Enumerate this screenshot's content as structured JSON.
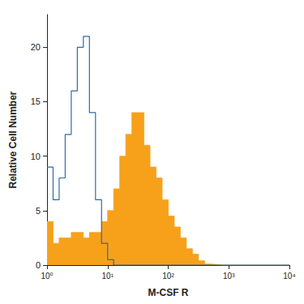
{
  "chart_data": {
    "type": "histogram",
    "xlabel": "M-CSF R",
    "ylabel": "Relative Cell Number",
    "log": "x",
    "grid": false,
    "xlim": [
      1,
      10000
    ],
    "xticks": [
      {
        "value": 1,
        "label": "10⁰"
      },
      {
        "value": 10,
        "label": "10¹"
      },
      {
        "value": 100,
        "label": "10²"
      },
      {
        "value": 1000,
        "label": "10³"
      },
      {
        "value": 10000,
        "label": "10⁴"
      }
    ],
    "ylim": [
      0,
      23
    ],
    "yticks": [
      0,
      5,
      10,
      15,
      20
    ],
    "bins": [
      1,
      1.259,
      1.585,
      1.995,
      2.512,
      3.162,
      3.981,
      5.012,
      6.31,
      7.943,
      10,
      12.59,
      15.85,
      19.95,
      25.12,
      31.62,
      39.81,
      50.12,
      63.1,
      79.43,
      100,
      125.9,
      158.5,
      199.5,
      251.2,
      316.2,
      398.1,
      501.2,
      631,
      794.3,
      1000,
      1259,
      1585,
      1995,
      2512,
      3162,
      3981,
      5012,
      6310,
      7943,
      10000
    ],
    "series": [
      {
        "color": "#f7a11a",
        "type": "area",
        "values": [
          4,
          2,
          2.5,
          2.5,
          3,
          3,
          2.5,
          3,
          3,
          4,
          5,
          7,
          10,
          12,
          14,
          14,
          11,
          9,
          8,
          6,
          4.5,
          3.5,
          2.5,
          1.5,
          1,
          0.4,
          0.1,
          0.05,
          0,
          0,
          0,
          0,
          0,
          0,
          0,
          0,
          0,
          0,
          0,
          0
        ]
      },
      {
        "color": "#2b6ca3",
        "type": "line",
        "values": [
          9,
          6,
          8,
          12,
          16,
          20,
          21,
          14,
          6,
          2,
          0.5,
          0,
          0,
          0,
          0,
          0,
          0,
          0,
          0,
          0,
          0,
          0,
          0,
          0,
          0,
          0,
          0,
          0,
          0,
          0,
          0,
          0,
          0,
          0,
          0,
          0,
          0,
          0,
          0,
          0
        ]
      }
    ]
  }
}
